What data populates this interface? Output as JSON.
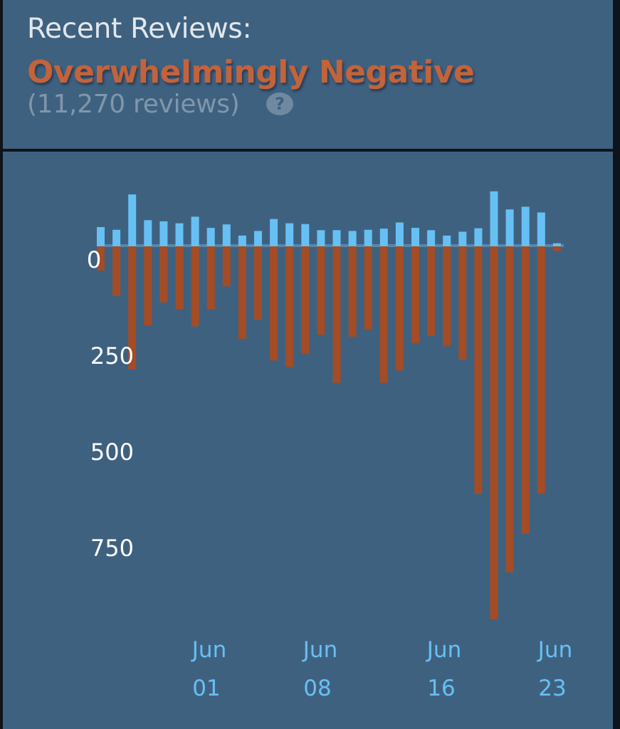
{
  "summary": {
    "label": "Recent Reviews:",
    "rating": "Overwhelmingly Negative",
    "count_text": "(11,270 reviews)",
    "help_icon": "question-mark-icon",
    "help_glyph": "?"
  },
  "colors": {
    "positive": "#66c0f4",
    "negative": "#a34c25",
    "axis_text": "#ffffff",
    "date_text": "#66c0f4",
    "rating_text": "#c2633c",
    "panel_bg": "#3f6180"
  },
  "chart_data": {
    "type": "bar",
    "ytick_labels": [
      "0",
      "250",
      "500",
      "750"
    ],
    "yticks": [
      0,
      250,
      500,
      750
    ],
    "ylim": [
      -145,
      975
    ],
    "xtick_labels": [
      {
        "month": "Jun",
        "day": "01"
      },
      {
        "month": "Jun",
        "day": "08"
      },
      {
        "month": "Jun",
        "day": "16"
      },
      {
        "month": "Jun",
        "day": "23"
      }
    ],
    "series": [
      {
        "name": "positive",
        "values": [
          50,
          43,
          135,
          68,
          65,
          60,
          77,
          48,
          57,
          28,
          40,
          71,
          60,
          58,
          42,
          42,
          40,
          43,
          46,
          62,
          48,
          42,
          28,
          38,
          47,
          143,
          96,
          103,
          88,
          8
        ]
      },
      {
        "name": "negative",
        "values": [
          63,
          129,
          320,
          206,
          146,
          164,
          208,
          164,
          104,
          241,
          191,
          297,
          314,
          280,
          230,
          355,
          235,
          217,
          355,
          323,
          252,
          233,
          260,
          295,
          644,
          970,
          848,
          748,
          643,
          12
        ]
      }
    ]
  }
}
